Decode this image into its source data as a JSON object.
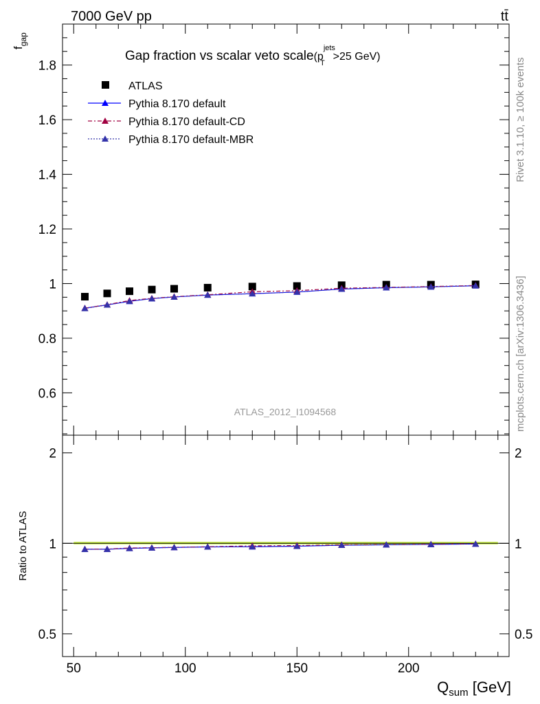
{
  "header": {
    "energy_label": "7000 GeV pp",
    "process_label": "tt̄"
  },
  "side": {
    "rivet_label": "Rivet 3.1.10, ≥ 100k events",
    "source_label": "mcplots.cern.ch [arXiv:1306.3436]"
  },
  "analysis_label": "ATLAS_2012_I1094568",
  "colors": {
    "data": "#000000",
    "default": "#0000ff",
    "cd": "#a00040",
    "mbr": "#3333aa",
    "band": "#ccee55"
  },
  "chart_data": [
    {
      "type": "scatter",
      "panel": "main",
      "title": "Gap fraction vs scalar veto scale",
      "title_suffix_base": "(p",
      "title_suffix_sup": "jets",
      "title_suffix_sub": "T",
      "title_suffix_rest": ">25 GeV)",
      "ylabel_base": "f",
      "ylabel_sub": "gap",
      "xlim": [
        45,
        245
      ],
      "ylim": [
        0.445,
        1.95
      ],
      "y_ticks": [
        "0.6",
        "0.8",
        "1",
        "1.2",
        "1.4",
        "1.6",
        "1.8"
      ],
      "x": [
        55,
        65,
        75,
        85,
        95,
        110,
        130,
        150,
        170,
        190,
        210,
        230
      ],
      "series": [
        {
          "name": "ATLAS",
          "style": "data",
          "values": [
            0.952,
            0.964,
            0.972,
            0.978,
            0.981,
            0.985,
            0.989,
            0.991,
            0.994,
            0.996,
            0.996,
            0.997
          ]
        },
        {
          "name": "Pythia 8.170 default",
          "style": "default",
          "values": [
            0.91,
            0.922,
            0.935,
            0.945,
            0.951,
            0.958,
            0.963,
            0.969,
            0.98,
            0.985,
            0.988,
            0.992
          ]
        },
        {
          "name": "Pythia 8.170 default-CD",
          "style": "cd",
          "values": [
            0.91,
            0.923,
            0.938,
            0.946,
            0.952,
            0.959,
            0.97,
            0.974,
            0.983,
            0.986,
            0.989,
            0.993
          ]
        },
        {
          "name": "Pythia 8.170 default-MBR",
          "style": "mbr",
          "values": [
            0.909,
            0.922,
            0.935,
            0.945,
            0.951,
            0.958,
            0.963,
            0.969,
            0.98,
            0.985,
            0.988,
            0.992
          ]
        }
      ],
      "legend": "top-left"
    },
    {
      "type": "line",
      "panel": "ratio",
      "ylabel": "Ratio to ATLAS",
      "xlabel_base": "Q",
      "xlabel_sub": "sum",
      "xlabel_rest": " [GeV]",
      "xlim": [
        45,
        245
      ],
      "ylim": [
        0.42,
        2.29
      ],
      "log_y": true,
      "y_ticks": [
        "0.5",
        "1",
        "2"
      ],
      "x_ticks": [
        "50",
        "100",
        "150",
        "200"
      ],
      "x": [
        55,
        65,
        75,
        85,
        95,
        110,
        130,
        150,
        170,
        190,
        210,
        230
      ],
      "series": [
        {
          "name": "Pythia 8.170 default",
          "style": "default",
          "values": [
            0.956,
            0.956,
            0.962,
            0.966,
            0.969,
            0.973,
            0.974,
            0.978,
            0.986,
            0.989,
            0.992,
            0.995
          ]
        },
        {
          "name": "Pythia 8.170 default-CD",
          "style": "cd",
          "values": [
            0.956,
            0.957,
            0.965,
            0.967,
            0.97,
            0.974,
            0.981,
            0.983,
            0.989,
            0.99,
            0.993,
            0.996
          ]
        },
        {
          "name": "Pythia 8.170 default-MBR",
          "style": "mbr",
          "values": [
            0.955,
            0.956,
            0.962,
            0.966,
            0.969,
            0.973,
            0.974,
            0.978,
            0.986,
            0.989,
            0.992,
            0.995
          ]
        }
      ]
    }
  ]
}
